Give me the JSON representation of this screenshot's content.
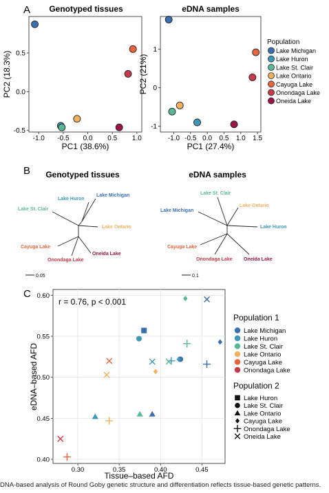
{
  "colors": {
    "Lake Michigan": "#3a6fb0",
    "Lake Huron": "#3e98b8",
    "Lake St. Clair": "#5ab89a",
    "Lake Ontario": "#f4b060",
    "Cayuga Lake": "#e8643c",
    "Onondaga Lake": "#c63a4a",
    "Oneida Lake": "#9b1547"
  },
  "panel_labels": {
    "a": "A",
    "b": "B",
    "c": "C"
  },
  "caption": "DNA-based analysis of Round Goby genetic structure and differentiation reflects tissue-based genetic patterns.",
  "chart_data": [
    {
      "type": "scatter",
      "title": "Genotyped tissues",
      "xlabel": "PC1 (38.6%)",
      "ylabel": "PC2 (18.3%)",
      "xlim": [
        -1.2,
        1.1
      ],
      "ylim": [
        -0.52,
        0.97
      ],
      "xticks": [
        "-1.0",
        "-0.5",
        "0.0",
        "0.5",
        "1.0"
      ],
      "xtick_values": [
        -1.0,
        -0.5,
        0.0,
        0.5,
        1.0
      ],
      "yticks": [
        "-0.5",
        "0.0",
        "0.5"
      ],
      "ytick_values": [
        -0.5,
        0.0,
        0.5
      ],
      "points": [
        {
          "pop": "Lake Michigan",
          "x": -1.08,
          "y": 0.87
        },
        {
          "pop": "Lake Huron",
          "x": -0.55,
          "y": -0.44
        },
        {
          "pop": "Lake St. Clair",
          "x": -0.53,
          "y": -0.46
        },
        {
          "pop": "Lake Ontario",
          "x": -0.22,
          "y": -0.35
        },
        {
          "pop": "Cayuga Lake",
          "x": 0.92,
          "y": 0.55
        },
        {
          "pop": "Onondaga Lake",
          "x": 0.82,
          "y": 0.23
        },
        {
          "pop": "Oneida Lake",
          "x": 0.64,
          "y": -0.46
        }
      ]
    },
    {
      "type": "scatter",
      "title": "eDNA samples",
      "xlabel": "PC1 (27.4%)",
      "ylabel": "PC2 (21%)",
      "xlim": [
        -1.4,
        1.6
      ],
      "ylim": [
        -1.15,
        1.85
      ],
      "xticks": [
        "-1.0",
        "-0.5",
        "0.0",
        "0.5",
        "1.0",
        "1.5"
      ],
      "xtick_values": [
        -1.0,
        -0.5,
        0.0,
        0.5,
        1.0,
        1.5
      ],
      "yticks": [
        "-1",
        "0",
        "1"
      ],
      "ytick_values": [
        -1,
        0,
        1
      ],
      "points": [
        {
          "pop": "Lake Michigan",
          "x": -1.15,
          "y": 1.77
        },
        {
          "pop": "Lake Huron",
          "x": -0.3,
          "y": -0.9
        },
        {
          "pop": "Lake St. Clair",
          "x": -1.05,
          "y": -0.62
        },
        {
          "pop": "Lake Ontario",
          "x": -0.82,
          "y": -0.46
        },
        {
          "pop": "Cayuga Lake",
          "x": 1.45,
          "y": 0.92
        },
        {
          "pop": "Onondaga Lake",
          "x": 1.35,
          "y": 0.27
        },
        {
          "pop": "Oneida Lake",
          "x": 0.8,
          "y": -0.95
        }
      ]
    },
    {
      "type": "scatter",
      "title": "",
      "xlabel": "Tissue–based AFD",
      "ylabel": "eDNA–based AFD",
      "annotation": "r = 0.76, p < 0.001",
      "xlim": [
        0.27,
        0.478
      ],
      "ylim": [
        0.395,
        0.607
      ],
      "xticks": [
        "0.30",
        "0.35",
        "0.40",
        "0.45"
      ],
      "xtick_values": [
        0.3,
        0.35,
        0.4,
        0.45
      ],
      "yticks": [
        "0.40",
        "0.45",
        "0.50",
        "0.55",
        "0.60"
      ],
      "ytick_values": [
        0.4,
        0.45,
        0.5,
        0.55,
        0.6
      ],
      "points": [
        {
          "pop1": "Lake Michigan",
          "pop2": "Lake Huron",
          "x": 0.38,
          "y": 0.557
        },
        {
          "pop1": "Lake Michigan",
          "pop2": "Lake St. Clair",
          "x": 0.424,
          "y": 0.522
        },
        {
          "pop1": "Lake Michigan",
          "pop2": "Lake Ontario",
          "x": 0.39,
          "y": 0.455
        },
        {
          "pop1": "Lake Michigan",
          "pop2": "Cayuga Lake",
          "x": 0.472,
          "y": 0.543
        },
        {
          "pop1": "Lake Michigan",
          "pop2": "Onondaga Lake",
          "x": 0.456,
          "y": 0.516
        },
        {
          "pop1": "Lake Michigan",
          "pop2": "Oneida Lake",
          "x": 0.456,
          "y": 0.595
        },
        {
          "pop1": "Lake Huron",
          "pop2": "Lake St. Clair",
          "x": 0.374,
          "y": 0.547
        },
        {
          "pop1": "Lake Huron",
          "pop2": "Lake Ontario",
          "x": 0.321,
          "y": 0.452
        },
        {
          "pop1": "Lake Huron",
          "pop2": "Cayuga Lake",
          "x": 0.422,
          "y": 0.522
        },
        {
          "pop1": "Lake Huron",
          "pop2": "Onondaga Lake",
          "x": 0.413,
          "y": 0.52
        },
        {
          "pop1": "Lake Huron",
          "pop2": "Oneida Lake",
          "x": 0.39,
          "y": 0.519
        },
        {
          "pop1": "Lake St. Clair",
          "pop2": "Lake Ontario",
          "x": 0.375,
          "y": 0.455
        },
        {
          "pop1": "Lake St. Clair",
          "pop2": "Cayuga Lake",
          "x": 0.43,
          "y": 0.596
        },
        {
          "pop1": "Lake St. Clair",
          "pop2": "Onondaga Lake",
          "x": 0.432,
          "y": 0.541
        },
        {
          "pop1": "Lake St. Clair",
          "pop2": "Oneida Lake",
          "x": 0.41,
          "y": 0.519
        },
        {
          "pop1": "Lake Ontario",
          "pop2": "Cayuga Lake",
          "x": 0.394,
          "y": 0.507
        },
        {
          "pop1": "Lake Ontario",
          "pop2": "Onondaga Lake",
          "x": 0.338,
          "y": 0.447
        },
        {
          "pop1": "Lake Ontario",
          "pop2": "Oneida Lake",
          "x": 0.335,
          "y": 0.503
        },
        {
          "pop1": "Cayuga Lake",
          "pop2": "Onondaga Lake",
          "x": 0.287,
          "y": 0.403
        },
        {
          "pop1": "Cayuga Lake",
          "pop2": "Oneida Lake",
          "x": 0.338,
          "y": 0.52
        },
        {
          "pop1": "Onondaga Lake",
          "pop2": "Oneida Lake",
          "x": 0.279,
          "y": 0.425
        }
      ]
    }
  ],
  "legend_pca": {
    "title": "Population",
    "items": [
      "Lake Michigan",
      "Lake Huron",
      "Lake St. Clair",
      "Lake Ontario",
      "Cayuga Lake",
      "Onondaga Lake",
      "Oneida Lake"
    ]
  },
  "trees": [
    {
      "title": "Genotyped tissues",
      "scale_label": "0.05",
      "labels": [
        {
          "text": "Lake Huron",
          "pop": "Lake Huron"
        },
        {
          "text": "Lake Michigan",
          "pop": "Lake Michigan"
        },
        {
          "text": "Lake St. Clair",
          "pop": "Lake St. Clair"
        },
        {
          "text": "Lake Ontario",
          "pop": "Lake Ontario"
        },
        {
          "text": "Cayuga Lake",
          "pop": "Cayuga Lake"
        },
        {
          "text": "Oneida Lake",
          "pop": "Oneida Lake"
        },
        {
          "text": "Onondaga Lake",
          "pop": "Onondaga Lake"
        }
      ]
    },
    {
      "title": "eDNA samples",
      "scale_label": "0.1",
      "labels": [
        {
          "text": "Lake St. Clair",
          "pop": "Lake St. Clair"
        },
        {
          "text": "Lake Ontario",
          "pop": "Lake Ontario"
        },
        {
          "text": "Lake Michigan",
          "pop": "Lake Michigan"
        },
        {
          "text": "Lake Huron",
          "pop": "Lake Huron"
        },
        {
          "text": "Cayuga Lake",
          "pop": "Cayuga Lake"
        },
        {
          "text": "Onondaga Lake",
          "pop": "Onondaga Lake"
        },
        {
          "text": "Oneida Lake",
          "pop": "Oneida Lake"
        }
      ]
    }
  ],
  "legend_c": {
    "pop1_title": "Population 1",
    "pop1_items": [
      "Lake Michigan",
      "Lake Huron",
      "Lake St. Clair",
      "Lake Ontario",
      "Cayuga Lake",
      "Onondaga Lake"
    ],
    "pop2_title": "Population 2",
    "pop2_items": [
      {
        "label": "Lake Huron",
        "shape": "square"
      },
      {
        "label": "Lake St. Clair",
        "shape": "circle"
      },
      {
        "label": "Lake Ontario",
        "shape": "triangle"
      },
      {
        "label": "Cayuga Lake",
        "shape": "diamond"
      },
      {
        "label": "Onondaga Lake",
        "shape": "plus"
      },
      {
        "label": "Oneida Lake",
        "shape": "cross"
      }
    ]
  }
}
